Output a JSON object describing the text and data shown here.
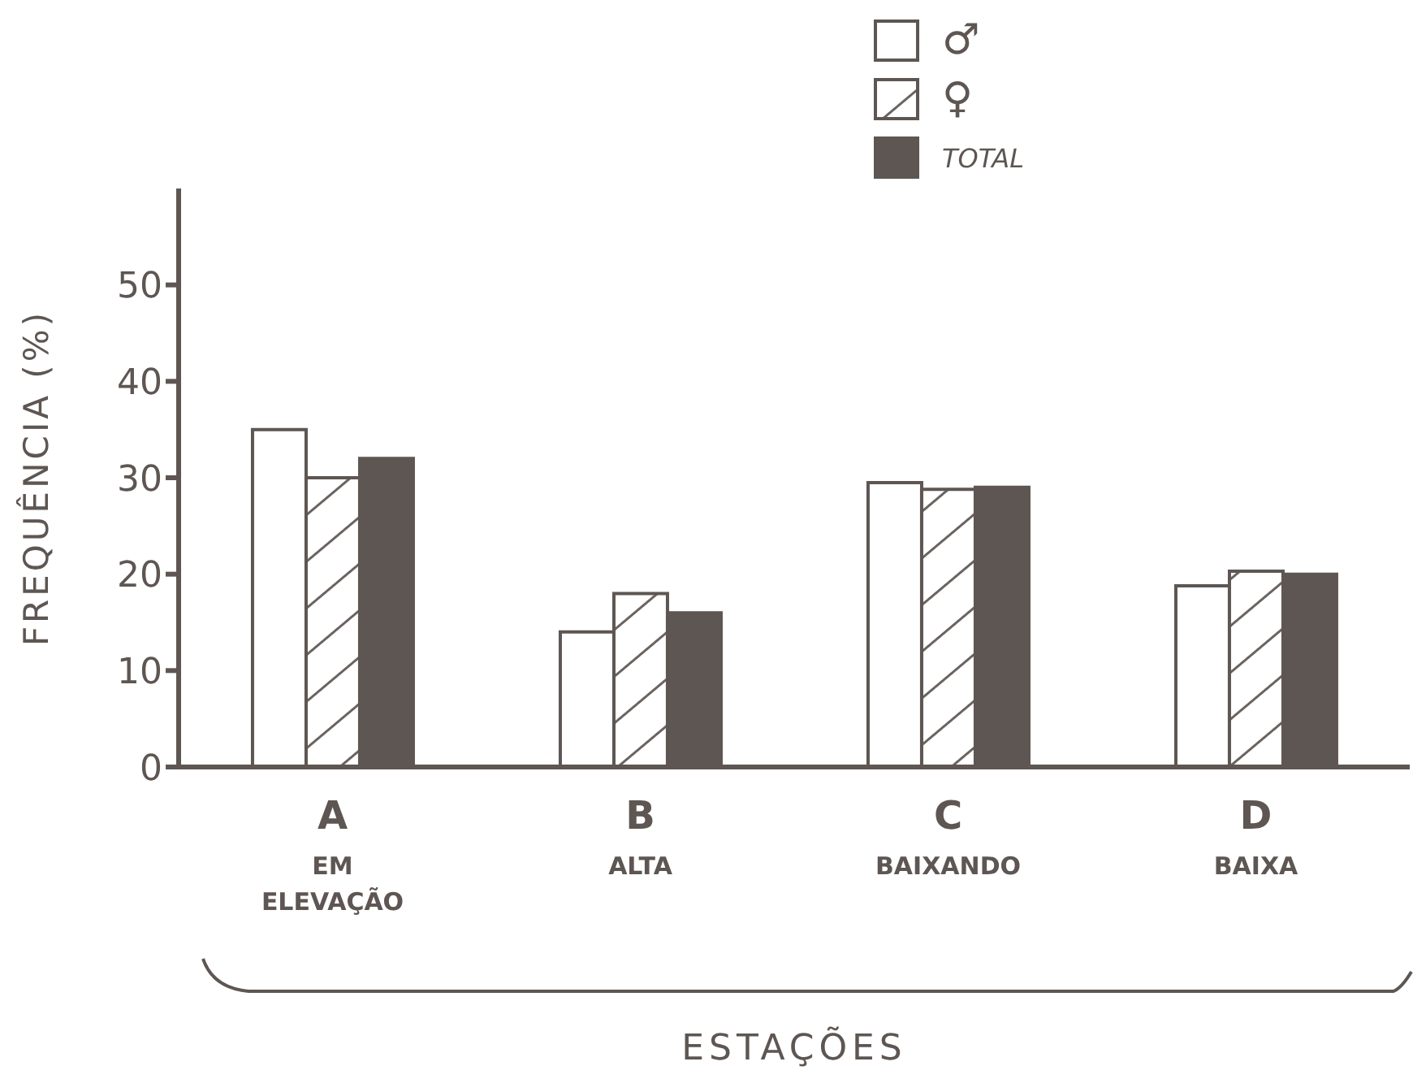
{
  "chart_data": {
    "type": "bar",
    "xlabel": "ESTAÇÕES",
    "ylabel": "FREQUÊNCIA (%)",
    "categories": [
      "A\nEM\nELEVAÇÃO",
      "B\nALTA",
      "C\nBAIXANDO",
      "D\nBAIXA"
    ],
    "series": [
      {
        "name": "♂",
        "color": "#ffffff",
        "values": [
          35,
          14,
          29.5,
          18.8
        ]
      },
      {
        "name": "♀",
        "color": "#6b635f",
        "values": [
          30,
          18,
          28.8,
          20.3
        ]
      },
      {
        "name": "TOTAL",
        "color": "#5e5652",
        "values": [
          32,
          16,
          29,
          20
        ]
      }
    ],
    "ylim": [
      0,
      60
    ],
    "yticks": [
      0,
      10,
      20,
      30,
      40,
      50
    ],
    "grid": false,
    "legend": "top"
  }
}
